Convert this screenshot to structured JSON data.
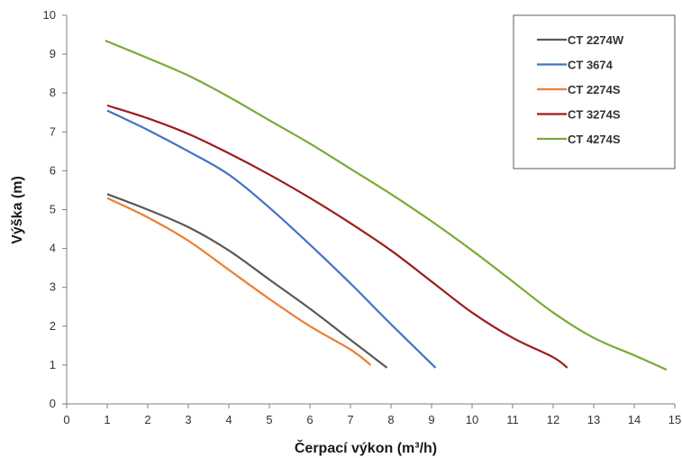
{
  "chart_data": {
    "type": "line",
    "xlabel": "Čerpací výkon (m³/h)",
    "ylabel": "Výška (m)",
    "xlim": [
      0,
      15
    ],
    "ylim": [
      0,
      10
    ],
    "xticks": [
      0,
      1,
      2,
      3,
      4,
      5,
      6,
      7,
      8,
      9,
      10,
      11,
      12,
      13,
      14,
      15
    ],
    "yticks": [
      0,
      1,
      2,
      3,
      4,
      5,
      6,
      7,
      8,
      9,
      10
    ],
    "grid": false,
    "legend_position": "top-right",
    "series": [
      {
        "name": "CT 2274W",
        "color": "#595959",
        "points": [
          [
            1,
            5.4
          ],
          [
            2,
            5.0
          ],
          [
            3,
            4.55
          ],
          [
            4,
            3.95
          ],
          [
            5,
            3.2
          ],
          [
            6,
            2.45
          ],
          [
            7,
            1.65
          ],
          [
            7.9,
            0.93
          ]
        ]
      },
      {
        "name": "CT 3674",
        "color": "#4472c4",
        "points": [
          [
            1,
            7.55
          ],
          [
            2,
            7.05
          ],
          [
            3,
            6.5
          ],
          [
            4,
            5.9
          ],
          [
            5,
            5.05
          ],
          [
            6,
            4.1
          ],
          [
            7,
            3.1
          ],
          [
            8,
            2.05
          ],
          [
            9.1,
            0.93
          ]
        ]
      },
      {
        "name": "CT 2274S",
        "color": "#ed7d31",
        "points": [
          [
            1,
            5.3
          ],
          [
            2,
            4.8
          ],
          [
            3,
            4.2
          ],
          [
            4,
            3.45
          ],
          [
            5,
            2.7
          ],
          [
            6,
            2.0
          ],
          [
            7,
            1.4
          ],
          [
            7.5,
            1.0
          ]
        ]
      },
      {
        "name": "CT 3274S",
        "color": "#9e1c1c",
        "points": [
          [
            1,
            7.68
          ],
          [
            2,
            7.35
          ],
          [
            3,
            6.95
          ],
          [
            4,
            6.45
          ],
          [
            5,
            5.9
          ],
          [
            6,
            5.3
          ],
          [
            7,
            4.65
          ],
          [
            8,
            3.95
          ],
          [
            9,
            3.15
          ],
          [
            10,
            2.35
          ],
          [
            11,
            1.7
          ],
          [
            12,
            1.2
          ],
          [
            12.35,
            0.93
          ]
        ]
      },
      {
        "name": "CT 4274S",
        "color": "#7aab35",
        "points": [
          [
            0.95,
            9.35
          ],
          [
            2,
            8.9
          ],
          [
            3,
            8.45
          ],
          [
            4,
            7.9
          ],
          [
            5,
            7.3
          ],
          [
            6,
            6.7
          ],
          [
            7,
            6.05
          ],
          [
            8,
            5.4
          ],
          [
            9,
            4.7
          ],
          [
            10,
            3.95
          ],
          [
            11,
            3.15
          ],
          [
            12,
            2.35
          ],
          [
            13,
            1.7
          ],
          [
            14,
            1.25
          ],
          [
            14.8,
            0.88
          ]
        ]
      }
    ]
  }
}
